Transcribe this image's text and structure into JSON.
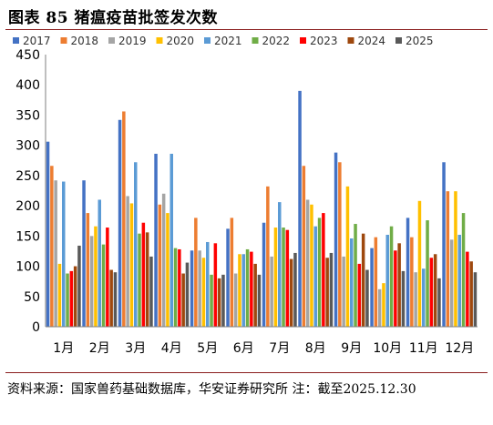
{
  "header": {
    "title": "图表 85 猪瘟疫苗批签发次数"
  },
  "footer": {
    "source": "资料来源：国家兽药基础数据库，华安证券研究所 注：截至2025.12.30"
  },
  "chart_data": {
    "type": "bar",
    "categories": [
      "1月",
      "2月",
      "3月",
      "4月",
      "5月",
      "6月",
      "7月",
      "8月",
      "9月",
      "10月",
      "11月",
      "12月"
    ],
    "ylim": [
      0,
      450
    ],
    "yticks": [
      0,
      50,
      100,
      150,
      200,
      250,
      300,
      350,
      400,
      450
    ],
    "grid": false,
    "legend_position": "top",
    "series": [
      {
        "name": "2017",
        "color": "#4472c4",
        "values": [
          306,
          242,
          342,
          286,
          126,
          162,
          172,
          390,
          288,
          130,
          180,
          272
        ]
      },
      {
        "name": "2018",
        "color": "#ed7d31",
        "values": [
          266,
          188,
          356,
          202,
          180,
          180,
          232,
          266,
          272,
          148,
          148,
          224
        ]
      },
      {
        "name": "2019",
        "color": "#a5a5a5",
        "values": [
          242,
          150,
          216,
          220,
          126,
          88,
          116,
          210,
          116,
          62,
          90,
          144
        ]
      },
      {
        "name": "2020",
        "color": "#ffc000",
        "values": [
          104,
          166,
          204,
          188,
          114,
          120,
          164,
          202,
          232,
          72,
          208,
          224
        ]
      },
      {
        "name": "2021",
        "color": "#5b9bd5",
        "values": [
          240,
          210,
          272,
          286,
          140,
          120,
          206,
          166,
          146,
          152,
          96,
          152
        ]
      },
      {
        "name": "2022",
        "color": "#70ad47",
        "values": [
          88,
          136,
          154,
          130,
          86,
          128,
          164,
          180,
          170,
          166,
          176,
          188
        ]
      },
      {
        "name": "2023",
        "color": "#ff0000",
        "values": [
          92,
          164,
          172,
          128,
          138,
          124,
          160,
          188,
          104,
          126,
          114,
          124
        ]
      },
      {
        "name": "2024",
        "color": "#9e480e",
        "values": [
          100,
          94,
          156,
          88,
          80,
          104,
          112,
          114,
          154,
          138,
          120,
          108
        ]
      },
      {
        "name": "2025",
        "color": "#595959",
        "values": [
          134,
          90,
          116,
          106,
          86,
          86,
          122,
          122,
          94,
          92,
          80,
          90
        ]
      }
    ]
  }
}
